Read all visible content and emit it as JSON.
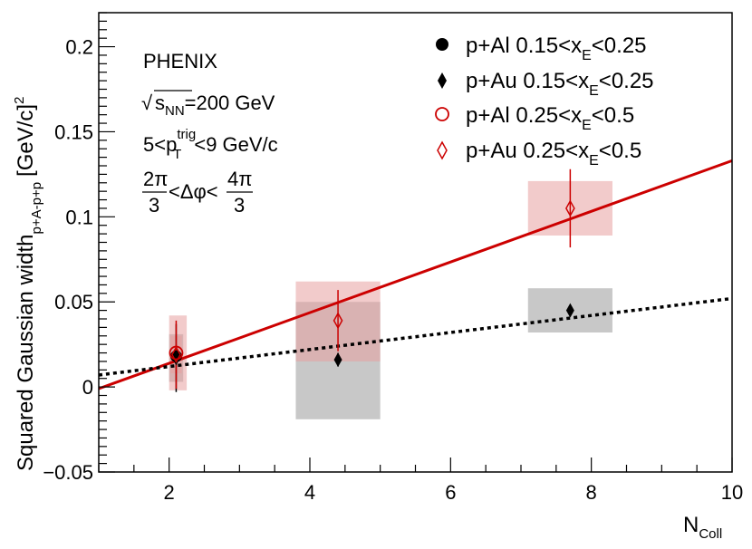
{
  "chart_data": {
    "type": "scatter",
    "xlim": [
      1,
      10
    ],
    "ylim": [
      -0.05,
      0.22
    ],
    "x_ticks": [
      2,
      4,
      6,
      8,
      10
    ],
    "y_ticks": [
      -0.05,
      0,
      0.05,
      0.1,
      0.15,
      0.2
    ],
    "x_tick_labels": [
      "2",
      "4",
      "6",
      "8",
      "10"
    ],
    "y_tick_labels": [
      "−0.05",
      "0",
      "0.05",
      "0.1",
      "0.15",
      "0.2"
    ],
    "xlabel": {
      "main": "N",
      "sub": "Coll"
    },
    "ylabel": {
      "main": "Squared Gaussian width",
      "sub": "p+A-p+p",
      "unit": "[GeV/c]",
      "sup": "2"
    },
    "annotations": {
      "experiment": "PHENIX",
      "energy": {
        "sqrt": "√",
        "s": "s",
        "sub": "NN",
        "rest": "=200 GeV"
      },
      "pt": {
        "pre": "5<p",
        "sup": "trig",
        "sub": "T",
        "post": "<9 GeV/c"
      },
      "dphi": {
        "num1": "2π",
        "den1": "3",
        "mid": "<Δφ<",
        "num2": "4π",
        "den2": "3"
      }
    },
    "series": [
      {
        "name": "p+Al 0.15<x_E<0.25",
        "legend": {
          "pre": "p+Al 0.15<x",
          "sub": "E",
          "post": "<0.25"
        },
        "marker": "filled-circle",
        "color": "#000000",
        "points": [
          {
            "x": 2.1,
            "y": 0.018,
            "yerr": 0.003
          }
        ],
        "sys": [
          {
            "x0": 2.02,
            "x1": 2.18,
            "y0": 0.01,
            "y1": 0.025
          }
        ]
      },
      {
        "name": "p+Au 0.15<x_E<0.25",
        "legend": {
          "pre": "p+Au 0.15<x",
          "sub": "E",
          "post": "<0.25"
        },
        "marker": "filled-diamond",
        "color": "#000000",
        "points": [
          {
            "x": 2.1,
            "y": 0.017,
            "yerr": 0.02
          },
          {
            "x": 4.4,
            "y": 0.016,
            "yerr": 0.004
          },
          {
            "x": 7.7,
            "y": 0.045,
            "yerr": 0.003
          }
        ],
        "sys": [
          {
            "x0": 2.0,
            "x1": 2.2,
            "y0": 0.003,
            "y1": 0.031
          },
          {
            "x0": 3.8,
            "x1": 5.0,
            "y0": -0.019,
            "y1": 0.05
          },
          {
            "x0": 7.1,
            "x1": 8.3,
            "y0": 0.032,
            "y1": 0.058
          }
        ]
      },
      {
        "name": "p+Al 0.25<x_E<0.5",
        "legend": {
          "pre": "p+Al 0.25<x",
          "sub": "E",
          "post": "<0.5"
        },
        "marker": "open-circle",
        "color": "#cc0000",
        "points": [
          {
            "x": 2.1,
            "y": 0.02,
            "yerr": 0.005
          }
        ],
        "sys": [
          {
            "x0": 2.02,
            "x1": 2.18,
            "y0": 0.008,
            "y1": 0.03
          }
        ]
      },
      {
        "name": "p+Au 0.25<x_E<0.5",
        "legend": {
          "pre": "p+Au 0.25<x",
          "sub": "E",
          "post": "<0.5"
        },
        "marker": "open-diamond",
        "color": "#cc0000",
        "points": [
          {
            "x": 2.1,
            "y": 0.019,
            "yerr": 0.02
          },
          {
            "x": 4.4,
            "y": 0.039,
            "yerr": 0.018
          },
          {
            "x": 7.7,
            "y": 0.105,
            "yerr": 0.023
          }
        ],
        "sys": [
          {
            "x0": 2.0,
            "x1": 2.25,
            "y0": -0.002,
            "y1": 0.042
          },
          {
            "x0": 3.8,
            "x1": 5.0,
            "y0": 0.015,
            "y1": 0.062
          },
          {
            "x0": 7.1,
            "x1": 8.3,
            "y0": 0.089,
            "y1": 0.121
          }
        ]
      }
    ],
    "fits": [
      {
        "name": "fit-high-xE",
        "color": "#cc0000",
        "style": "solid",
        "x": [
          1.0,
          10.0
        ],
        "y": [
          -0.001,
          0.133
        ]
      },
      {
        "name": "fit-low-xE",
        "color": "#000000",
        "style": "dotted",
        "x": [
          1.0,
          10.0
        ],
        "y": [
          0.007,
          0.052
        ]
      }
    ],
    "colors": {
      "sys_black": "#c8c8c8",
      "sys_red": "#f1c5c5",
      "sys_overlap": "#c4a9aa"
    }
  }
}
